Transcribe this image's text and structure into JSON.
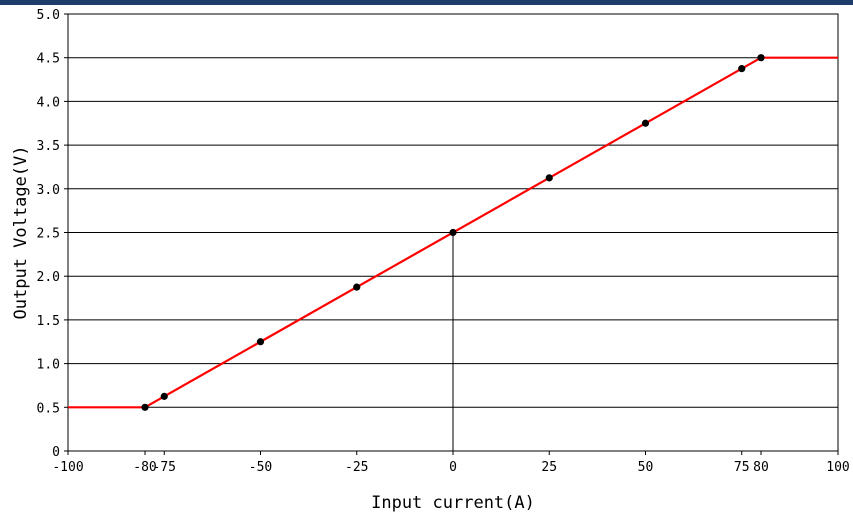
{
  "chart_data": {
    "type": "line",
    "title": "",
    "xlabel": "Input current(A)",
    "ylabel": "Output Voltage(V)",
    "xlim": [
      -100,
      100
    ],
    "ylim": [
      0,
      5
    ],
    "grid": true,
    "x_ticks": [
      {
        "value": -100,
        "label": "-100"
      },
      {
        "value": -80,
        "label": "-80"
      },
      {
        "value": -75,
        "label": "-75"
      },
      {
        "value": -50,
        "label": "-50"
      },
      {
        "value": -25,
        "label": "-25"
      },
      {
        "value": 0,
        "label": "0"
      },
      {
        "value": 25,
        "label": "25"
      },
      {
        "value": 50,
        "label": "50"
      },
      {
        "value": 75,
        "label": "75"
      },
      {
        "value": 80,
        "label": "80"
      },
      {
        "value": 100,
        "label": "100"
      }
    ],
    "y_ticks": [
      {
        "value": 0,
        "label": "0"
      },
      {
        "value": 0.5,
        "label": "0.5"
      },
      {
        "value": 1.0,
        "label": "1.0"
      },
      {
        "value": 1.5,
        "label": "1.5"
      },
      {
        "value": 2.0,
        "label": "2.0"
      },
      {
        "value": 2.5,
        "label": "2.5"
      },
      {
        "value": 3.0,
        "label": "3.0"
      },
      {
        "value": 3.5,
        "label": "3.5"
      },
      {
        "value": 4.0,
        "label": "4.0"
      },
      {
        "value": 4.5,
        "label": "4.5"
      },
      {
        "value": 5.0,
        "label": "5.0"
      }
    ],
    "series": [
      {
        "color": "#ff0000",
        "x": [
          -100,
          -80,
          80,
          100
        ],
        "y": [
          0.5,
          0.5,
          4.5,
          4.5
        ]
      }
    ],
    "markers": {
      "color": "#000000",
      "x": [
        -80,
        -75,
        -50,
        -25,
        0,
        25,
        50,
        75,
        80
      ],
      "y": [
        0.5,
        0.625,
        1.25,
        1.875,
        2.5,
        3.125,
        3.75,
        4.375,
        4.5
      ]
    }
  }
}
